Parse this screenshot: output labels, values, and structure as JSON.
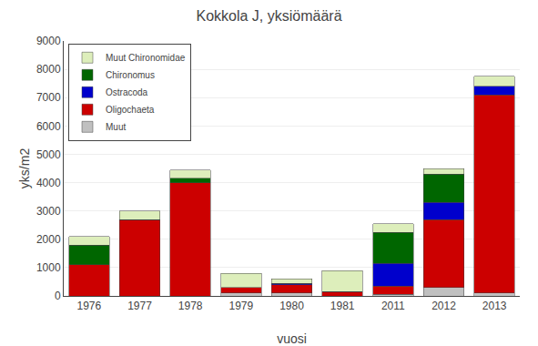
{
  "chart_data": {
    "type": "bar",
    "stacked": true,
    "title": "Kokkola J, yksiömäärä",
    "xlabel": "vuosi",
    "ylabel": "yks/m2",
    "categories": [
      "1976",
      "1977",
      "1978",
      "1979",
      "1980",
      "1981",
      "2011",
      "2012",
      "2013"
    ],
    "series": [
      {
        "name": "Muut",
        "color": "#c0c0c0",
        "values": [
          0,
          0,
          0,
          100,
          100,
          0,
          50,
          300,
          100
        ]
      },
      {
        "name": "Oligochaeta",
        "color": "#cc0000",
        "values": [
          1100,
          2700,
          4000,
          200,
          300,
          150,
          300,
          2400,
          7000
        ]
      },
      {
        "name": "Ostracoda",
        "color": "#0000cc",
        "values": [
          0,
          0,
          0,
          0,
          50,
          0,
          800,
          600,
          300
        ]
      },
      {
        "name": "Chironomus",
        "color": "#006600",
        "values": [
          700,
          0,
          150,
          0,
          0,
          0,
          1100,
          1000,
          0
        ]
      },
      {
        "name": "Muut Chironomidae",
        "color": "#ddeebb",
        "values": [
          300,
          300,
          300,
          500,
          150,
          750,
          300,
          200,
          350
        ]
      }
    ],
    "ylim": [
      0,
      9000
    ],
    "yticks": [
      0,
      1000,
      2000,
      3000,
      4000,
      5000,
      6000,
      7000,
      8000,
      9000
    ],
    "grid": true,
    "legend": "upper left"
  }
}
